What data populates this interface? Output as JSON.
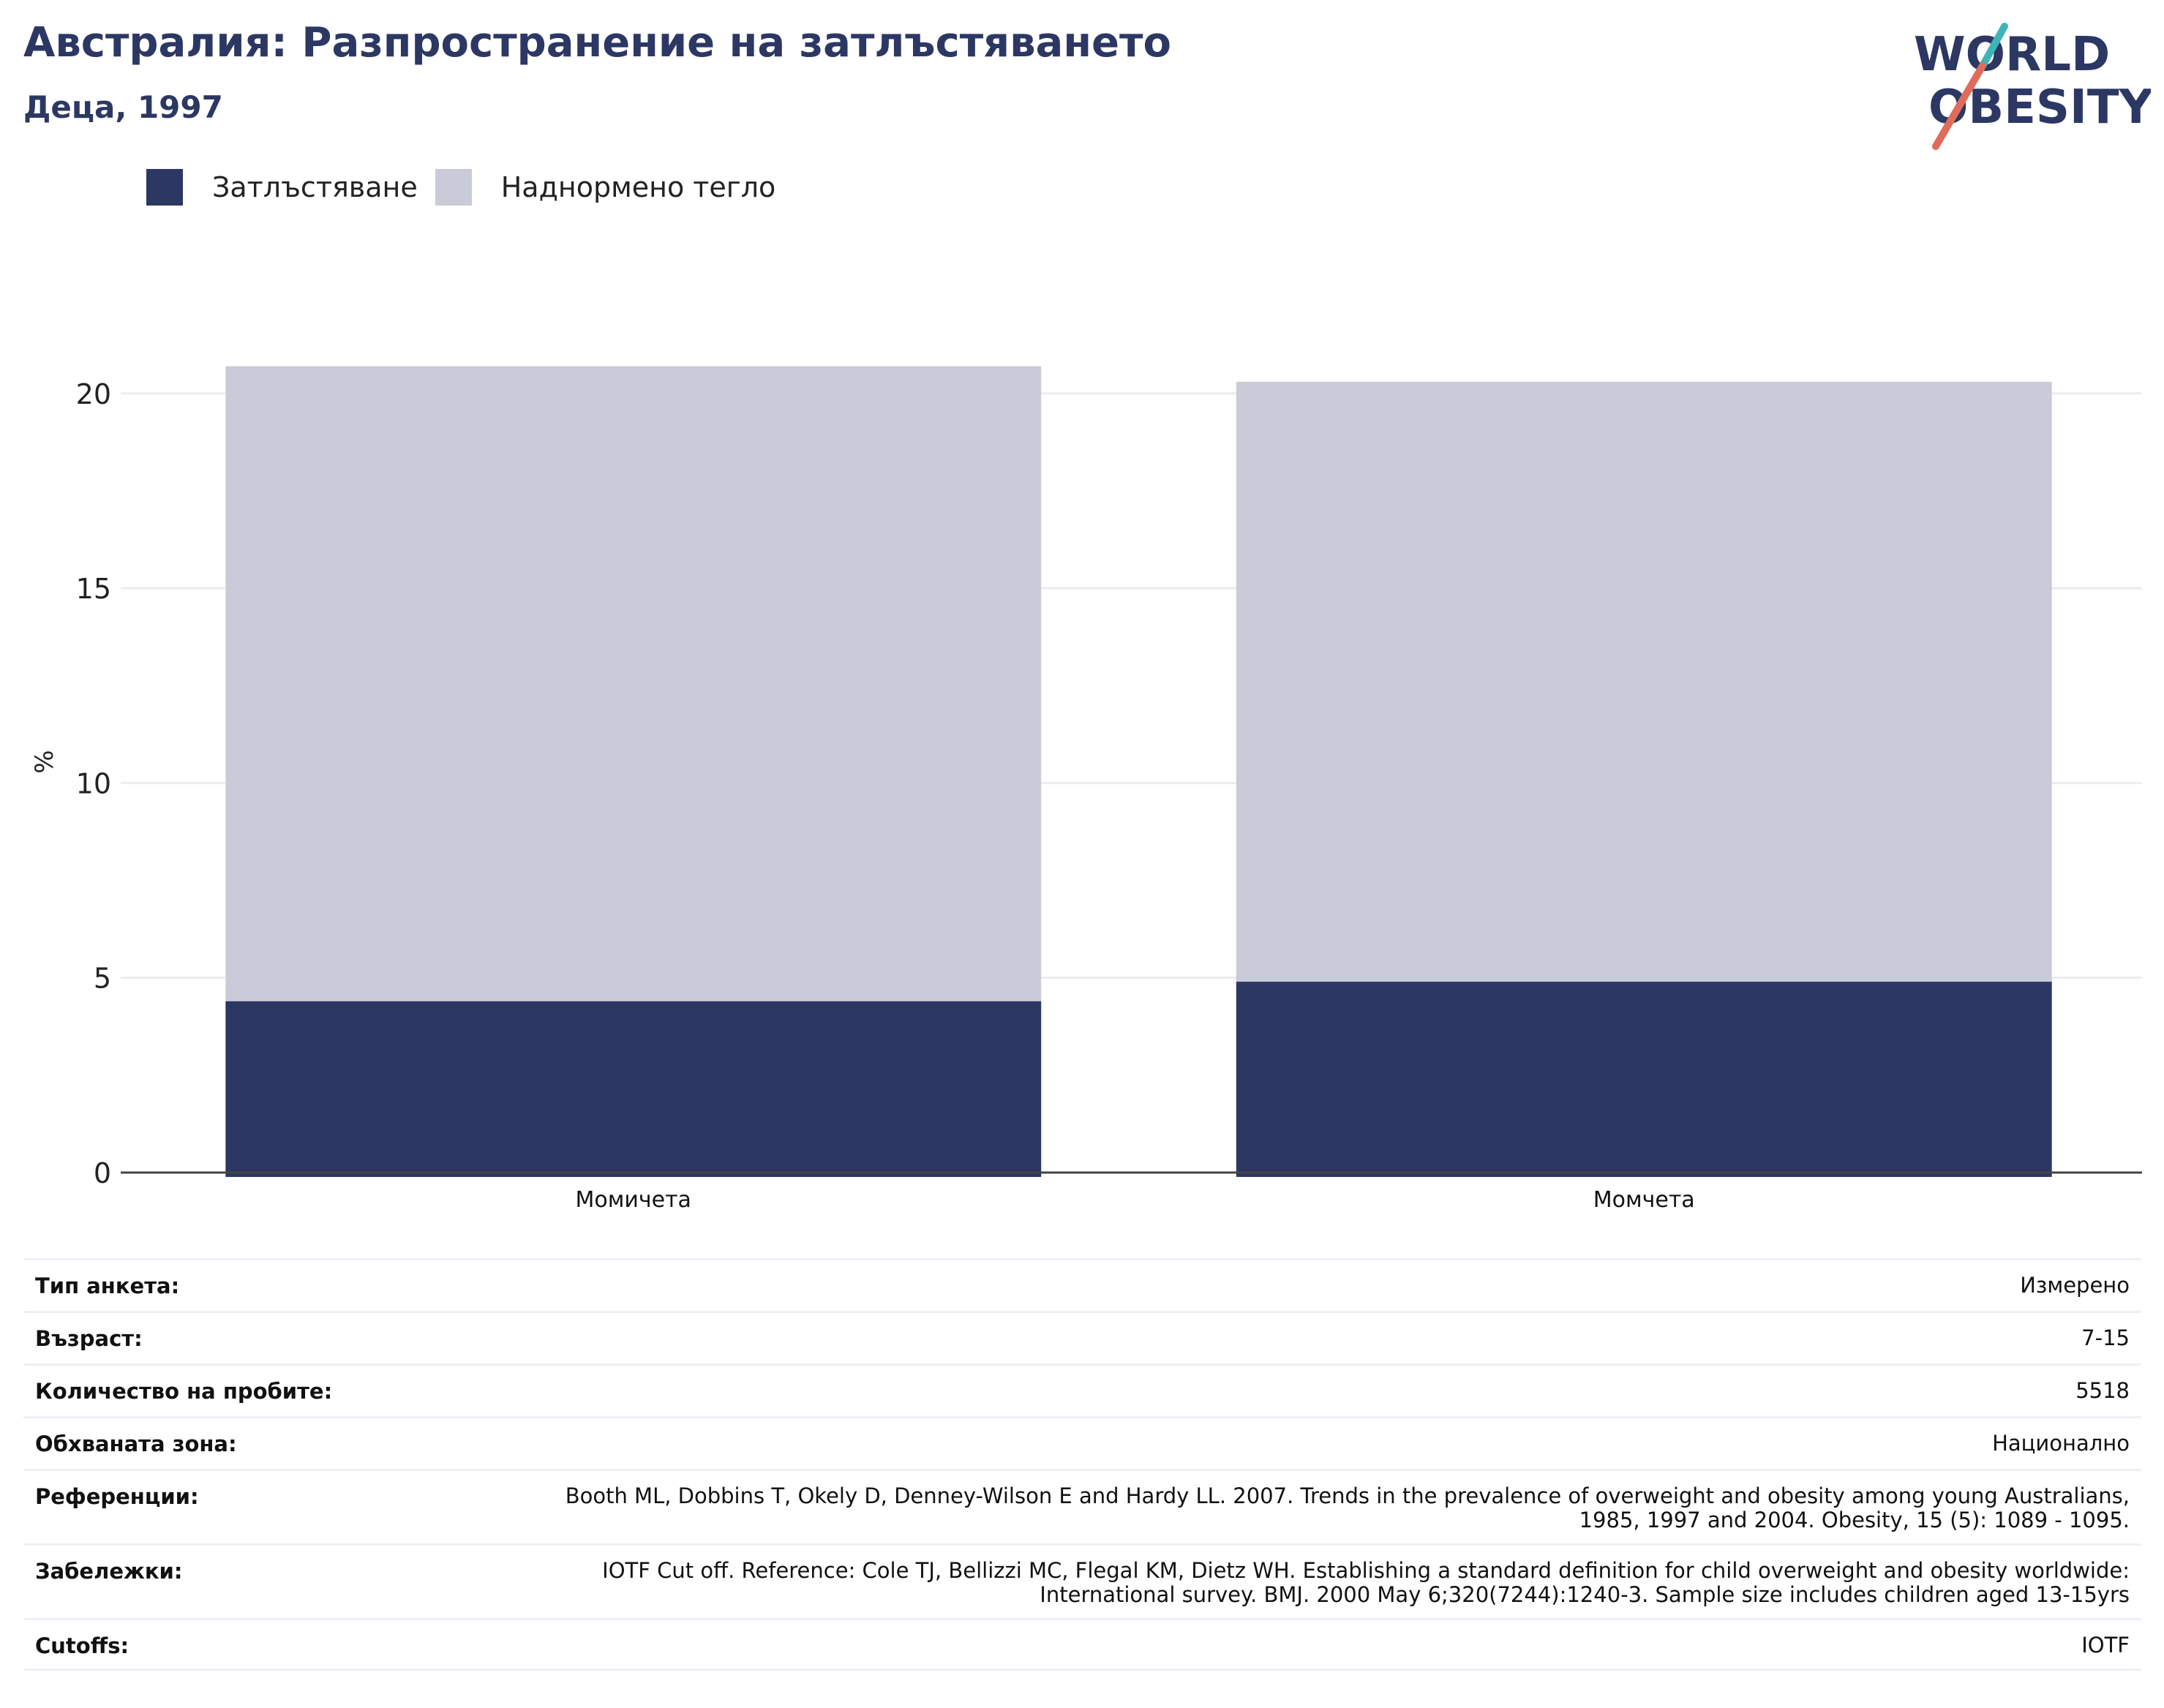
{
  "header": {
    "title": "Австралия: Разпространение на затлъстяването",
    "subtitle": "Деца, 1997"
  },
  "logo": {
    "line1": "WORLD",
    "line2": "OBESITY",
    "colors": {
      "text": "#2c3863",
      "slash_teal": "#3fb4b8",
      "slash_coral": "#e06b5a"
    }
  },
  "chart_data": {
    "type": "bar",
    "stacked": true,
    "categories": [
      "Момичета",
      "Момчета"
    ],
    "series": [
      {
        "name": "Затлъстяване",
        "color": "#2c3863",
        "values": [
          4.4,
          4.9
        ]
      },
      {
        "name": "Наднормено тегло",
        "color": "#cacbd8",
        "values": [
          16.3,
          15.4
        ]
      }
    ],
    "ylabel": "%",
    "xlabel": "",
    "ylim": [
      0,
      20.9
    ],
    "yticks": [
      0,
      5,
      10,
      15,
      20
    ],
    "grid": true,
    "legend_position": "top-left"
  },
  "info": [
    {
      "key": "Тип анкета:",
      "value": "Измерено"
    },
    {
      "key": "Възраст:",
      "value": "7-15"
    },
    {
      "key": "Количество на пробите:",
      "value": "5518"
    },
    {
      "key": "Обхваната зона:",
      "value": "Национално"
    },
    {
      "key": "Референции:",
      "value": "Booth ML, Dobbins T, Okely D, Denney-Wilson E and Hardy LL. 2007. Trends in the prevalence of overweight and obesity among young Australians, 1985, 1997 and 2004. Obesity, 15 (5): 1089 - 1095."
    },
    {
      "key": "Забележки:",
      "value": "IOTF Cut off. Reference: Cole TJ, Bellizzi MC, Flegal KM, Dietz WH. Establishing a standard definition for child overweight and obesity worldwide: International survey. BMJ. 2000 May 6;320(7244):1240-3. Sample size includes children aged 13-15yrs"
    },
    {
      "key": "Cutoffs:",
      "value": "IOTF"
    }
  ]
}
